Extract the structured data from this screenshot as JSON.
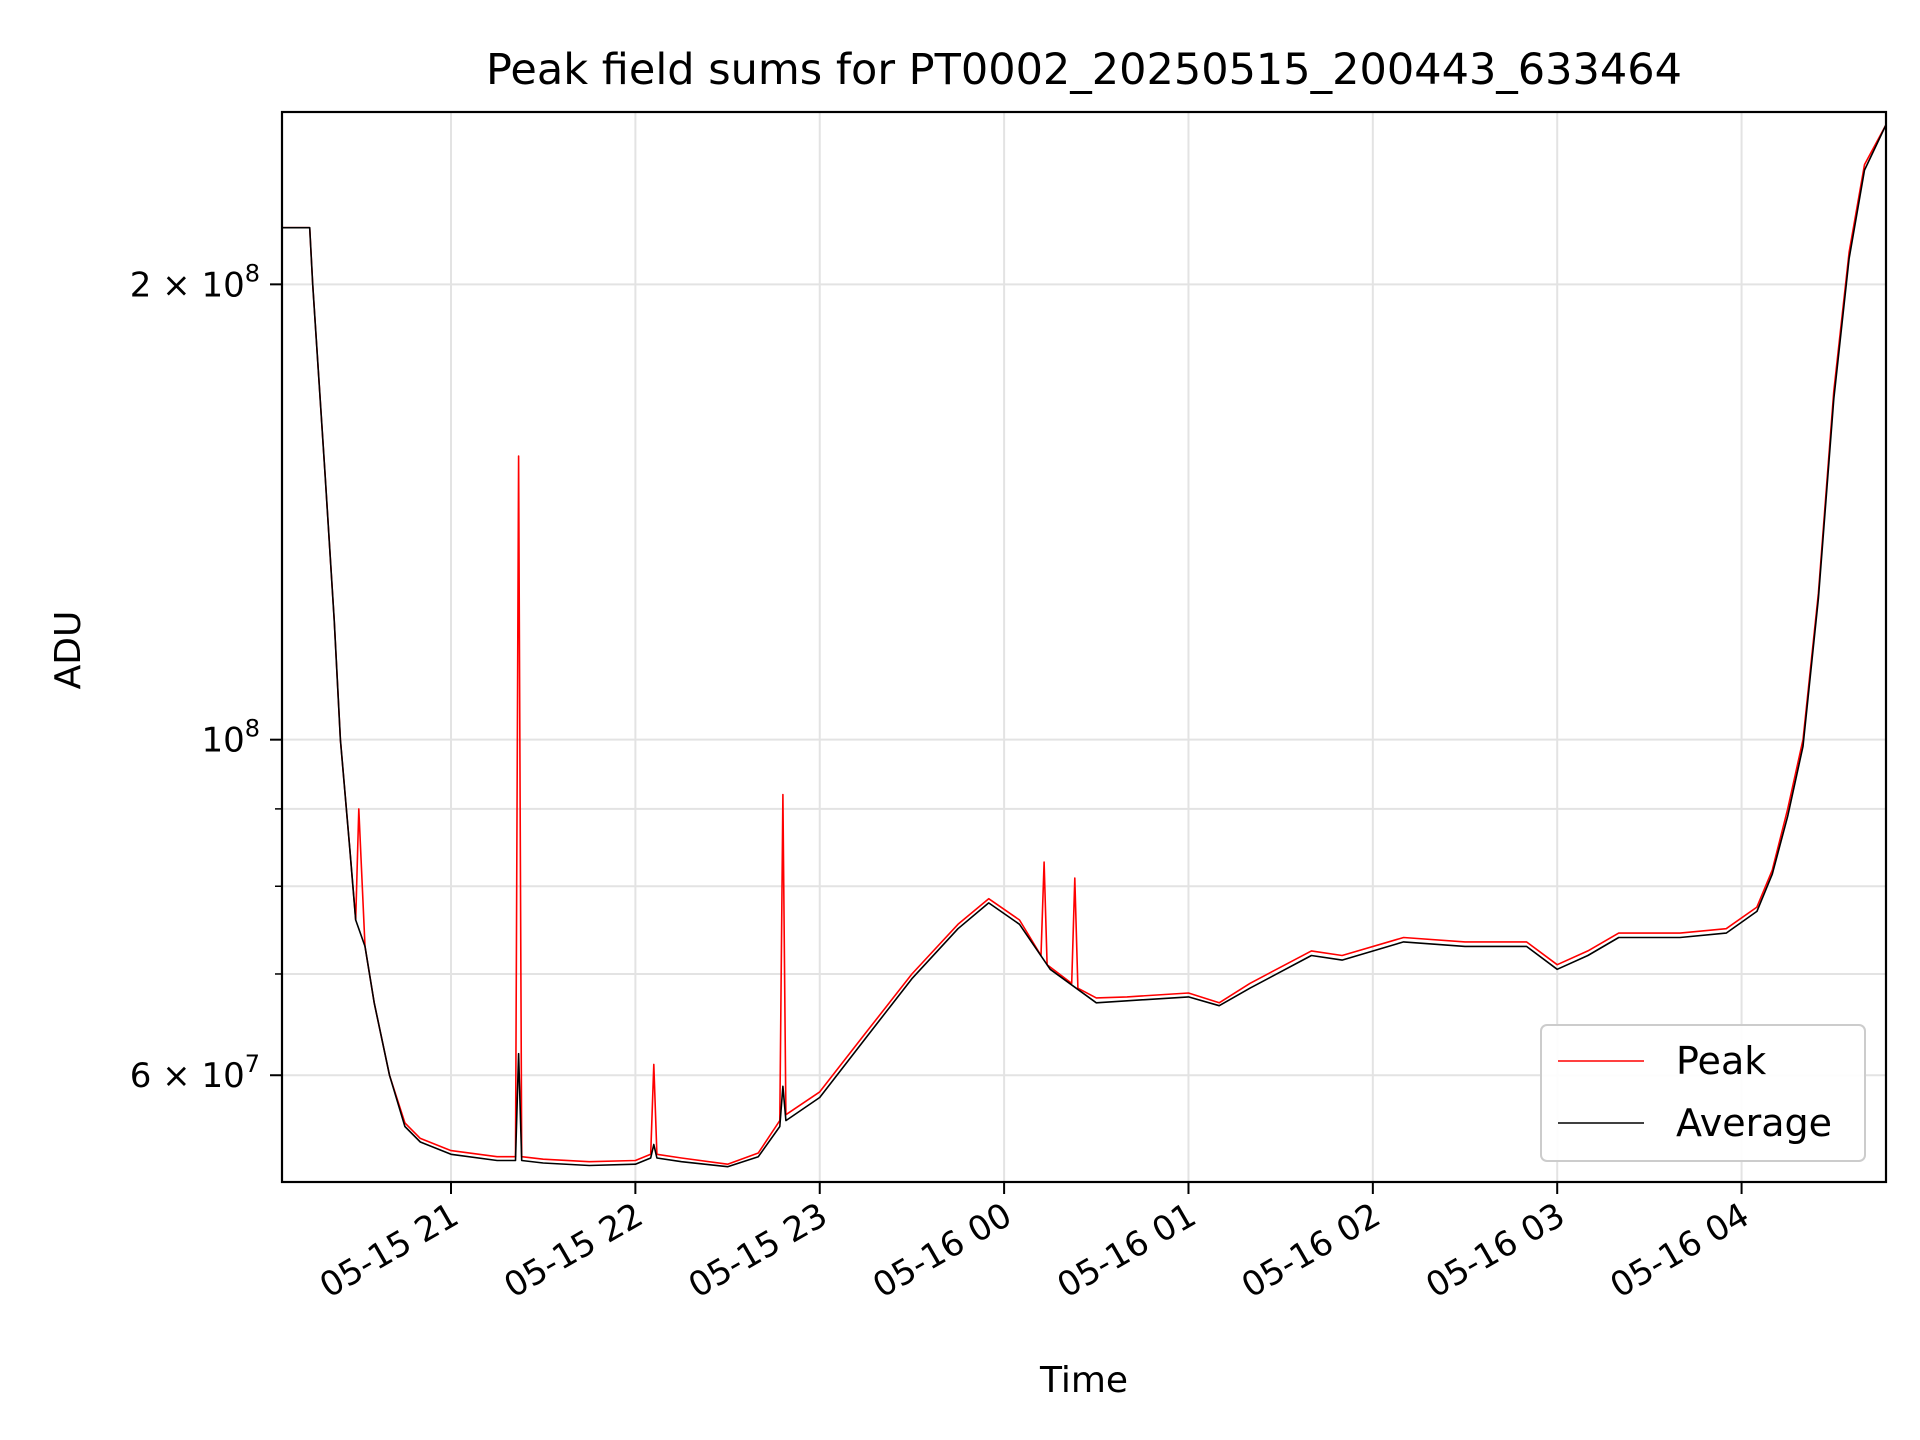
{
  "chart_data": {
    "type": "line",
    "title": "Peak field sums for PT0002_20250515_200443_633464",
    "xlabel": "Time",
    "ylabel": "ADU",
    "yscale": "log",
    "xlim": [
      "2025-05-15 20:05",
      "2025-05-16 04:47"
    ],
    "ylim": [
      51000000,
      260000000
    ],
    "x_ticks": [
      "05-15 21",
      "05-15 22",
      "05-15 23",
      "05-16 00",
      "05-16 01",
      "05-16 02",
      "05-16 03",
      "05-16 04"
    ],
    "x_tick_values": [
      "2025-05-15 21:00",
      "2025-05-15 22:00",
      "2025-05-15 23:00",
      "2025-05-16 00:00",
      "2025-05-16 01:00",
      "2025-05-16 02:00",
      "2025-05-16 03:00",
      "2025-05-16 04:00"
    ],
    "y_ticks": [
      {
        "value": 200000000,
        "base": "2 × 10",
        "exp": "8"
      },
      {
        "value": 100000000,
        "base": "10",
        "exp": "8"
      },
      {
        "value": 60000000,
        "base": "6 × 10",
        "exp": "7"
      }
    ],
    "y_minor_ticks": [
      70000000,
      80000000,
      90000000
    ],
    "grid": true,
    "legend": "lower-right",
    "series": [
      {
        "name": "Peak",
        "color": "#ff0000",
        "x": [
          "2025-05-15 20:05",
          "2025-05-15 20:14",
          "2025-05-15 20:15",
          "2025-05-15 20:19",
          "2025-05-15 20:22",
          "2025-05-15 20:24",
          "2025-05-15 20:27",
          "2025-05-15 20:29",
          "2025-05-15 20:30",
          "2025-05-15 20:32",
          "2025-05-15 20:35",
          "2025-05-15 20:40",
          "2025-05-15 20:45",
          "2025-05-15 20:50",
          "2025-05-15 21:00",
          "2025-05-15 21:15",
          "2025-05-15 21:21",
          "2025-05-15 21:22",
          "2025-05-15 21:23",
          "2025-05-15 21:30",
          "2025-05-15 21:45",
          "2025-05-15 22:00",
          "2025-05-15 22:05",
          "2025-05-15 22:06",
          "2025-05-15 22:07",
          "2025-05-15 22:15",
          "2025-05-15 22:30",
          "2025-05-15 22:40",
          "2025-05-15 22:47",
          "2025-05-15 22:48",
          "2025-05-15 22:49",
          "2025-05-15 23:00",
          "2025-05-15 23:15",
          "2025-05-15 23:30",
          "2025-05-15 23:45",
          "2025-05-15 23:55",
          "2025-05-16 00:05",
          "2025-05-16 00:12",
          "2025-05-16 00:13",
          "2025-05-16 00:14",
          "2025-05-16 00:22",
          "2025-05-16 00:23",
          "2025-05-16 00:24",
          "2025-05-16 00:30",
          "2025-05-16 00:40",
          "2025-05-16 01:00",
          "2025-05-16 01:10",
          "2025-05-16 01:20",
          "2025-05-16 01:40",
          "2025-05-16 01:50",
          "2025-05-16 02:10",
          "2025-05-16 02:30",
          "2025-05-16 02:50",
          "2025-05-16 03:00",
          "2025-05-16 03:10",
          "2025-05-16 03:20",
          "2025-05-16 03:40",
          "2025-05-16 03:55",
          "2025-05-16 04:05",
          "2025-05-16 04:10",
          "2025-05-16 04:15",
          "2025-05-16 04:20",
          "2025-05-16 04:25",
          "2025-05-16 04:30",
          "2025-05-16 04:35",
          "2025-05-16 04:40",
          "2025-05-16 04:47"
        ],
        "y": [
          218000000,
          218000000,
          200000000,
          150000000,
          120000000,
          100000000,
          85000000,
          76000000,
          90000000,
          73000000,
          67000000,
          60000000,
          55800000,
          54500000,
          53500000,
          53000000,
          53000000,
          154000000,
          53000000,
          52800000,
          52600000,
          52700000,
          53200000,
          61000000,
          53200000,
          52900000,
          52400000,
          53300000,
          56000000,
          92000000,
          56500000,
          58500000,
          64000000,
          70000000,
          75500000,
          78500000,
          76000000,
          72000000,
          83000000,
          71000000,
          69000000,
          81000000,
          68500000,
          67500000,
          67600000,
          68000000,
          67000000,
          69000000,
          72500000,
          72000000,
          74000000,
          73500000,
          73500000,
          71000000,
          72500000,
          74500000,
          74500000,
          75000000,
          77500000,
          82000000,
          90000000,
          100000000,
          125000000,
          170000000,
          210000000,
          240000000,
          255000000
        ]
      },
      {
        "name": "Average",
        "color": "#000000",
        "x": [
          "2025-05-15 20:05",
          "2025-05-15 20:14",
          "2025-05-15 20:15",
          "2025-05-15 20:19",
          "2025-05-15 20:22",
          "2025-05-15 20:24",
          "2025-05-15 20:27",
          "2025-05-15 20:29",
          "2025-05-15 20:32",
          "2025-05-15 20:35",
          "2025-05-15 20:40",
          "2025-05-15 20:45",
          "2025-05-15 20:50",
          "2025-05-15 21:00",
          "2025-05-15 21:15",
          "2025-05-15 21:21",
          "2025-05-15 21:22",
          "2025-05-15 21:23",
          "2025-05-15 21:30",
          "2025-05-15 21:45",
          "2025-05-15 22:00",
          "2025-05-15 22:05",
          "2025-05-15 22:06",
          "2025-05-15 22:07",
          "2025-05-15 22:15",
          "2025-05-15 22:30",
          "2025-05-15 22:40",
          "2025-05-15 22:47",
          "2025-05-15 22:48",
          "2025-05-15 22:49",
          "2025-05-15 23:00",
          "2025-05-15 23:15",
          "2025-05-15 23:30",
          "2025-05-15 23:45",
          "2025-05-15 23:55",
          "2025-05-16 00:05",
          "2025-05-16 00:15",
          "2025-05-16 00:30",
          "2025-05-16 00:40",
          "2025-05-16 01:00",
          "2025-05-16 01:10",
          "2025-05-16 01:20",
          "2025-05-16 01:40",
          "2025-05-16 01:50",
          "2025-05-16 02:10",
          "2025-05-16 02:30",
          "2025-05-16 02:50",
          "2025-05-16 03:00",
          "2025-05-16 03:10",
          "2025-05-16 03:20",
          "2025-05-16 03:40",
          "2025-05-16 03:55",
          "2025-05-16 04:05",
          "2025-05-16 04:10",
          "2025-05-16 04:15",
          "2025-05-16 04:20",
          "2025-05-16 04:25",
          "2025-05-16 04:30",
          "2025-05-16 04:35",
          "2025-05-16 04:40",
          "2025-05-16 04:47"
        ],
        "y": [
          218000000,
          218000000,
          200000000,
          150000000,
          120000000,
          100000000,
          85000000,
          76000000,
          73000000,
          67000000,
          60000000,
          55500000,
          54200000,
          53200000,
          52700000,
          52700000,
          62000000,
          52700000,
          52500000,
          52300000,
          52400000,
          52900000,
          54000000,
          52900000,
          52600000,
          52200000,
          53000000,
          55500000,
          59000000,
          56000000,
          58000000,
          63500000,
          69500000,
          75000000,
          78000000,
          75500000,
          70500000,
          67000000,
          67200000,
          67600000,
          66700000,
          68500000,
          72000000,
          71500000,
          73500000,
          73000000,
          73000000,
          70500000,
          72000000,
          74000000,
          74000000,
          74500000,
          77000000,
          81500000,
          89000000,
          99000000,
          124000000,
          168000000,
          208000000,
          238000000,
          255000000
        ]
      }
    ]
  }
}
